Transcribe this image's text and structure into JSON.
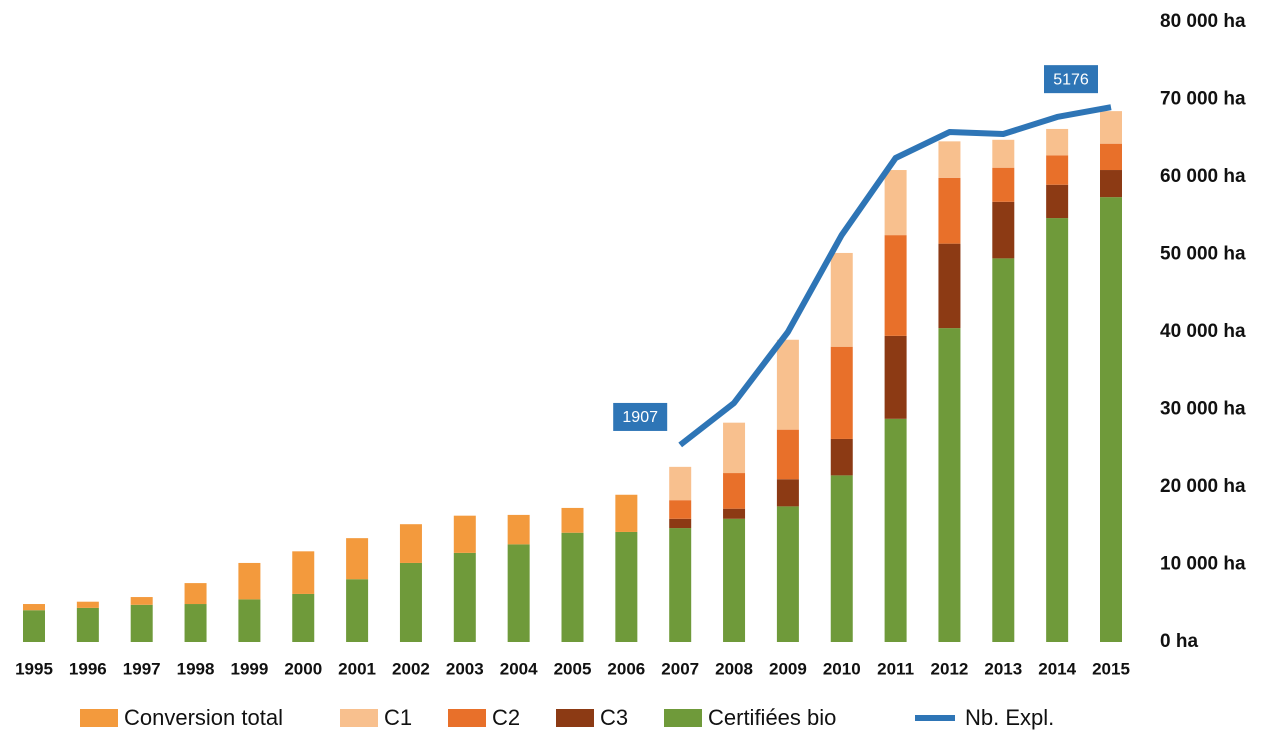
{
  "chart_data": {
    "type": "bar",
    "categories": [
      "1995",
      "1996",
      "1997",
      "1998",
      "1999",
      "2000",
      "2001",
      "2002",
      "2003",
      "2004",
      "2005",
      "2006",
      "2007",
      "2008",
      "2009",
      "2010",
      "2011",
      "2012",
      "2013",
      "2014",
      "2015"
    ],
    "stacked": true,
    "series": [
      {
        "name": "Conversion total",
        "color": "#f39a3d",
        "values": [
          800,
          800,
          1000,
          2700,
          4700,
          5500,
          5300,
          5000,
          4800,
          3800,
          3200,
          4800,
          null,
          null,
          null,
          null,
          null,
          null,
          null,
          null,
          null
        ]
      },
      {
        "name": "C1",
        "color": "#f8c08e",
        "values": [
          null,
          null,
          null,
          null,
          null,
          null,
          null,
          null,
          null,
          null,
          null,
          null,
          4300,
          6500,
          11600,
          12100,
          8400,
          4700,
          3600,
          3400,
          4200
        ]
      },
      {
        "name": "C2",
        "color": "#e8702a",
        "values": [
          null,
          null,
          null,
          null,
          null,
          null,
          null,
          null,
          null,
          null,
          null,
          null,
          2400,
          4600,
          6400,
          11900,
          13000,
          8500,
          4400,
          3800,
          3400
        ]
      },
      {
        "name": "C3",
        "color": "#8c3a14",
        "values": [
          null,
          null,
          null,
          null,
          null,
          null,
          null,
          null,
          null,
          null,
          null,
          null,
          1200,
          1300,
          3500,
          4700,
          10700,
          10900,
          7300,
          4300,
          3500
        ]
      },
      {
        "name": "Certifiées bio",
        "color": "#6f9a3a",
        "values": [
          4100,
          4400,
          4800,
          4900,
          5500,
          6200,
          8100,
          10200,
          11500,
          12600,
          14100,
          14200,
          14700,
          15900,
          17500,
          21500,
          28800,
          40500,
          49500,
          54700,
          57400
        ]
      },
      {
        "name": "Nb. Expl.",
        "type": "line",
        "axis": "y2",
        "color": "#2e75b6",
        "values": [
          null,
          null,
          null,
          null,
          null,
          null,
          null,
          null,
          null,
          null,
          null,
          null,
          1907,
          2313,
          3000,
          3939,
          4684,
          4935,
          4916,
          5081,
          5176
        ],
        "value_labels": [
          null,
          null,
          null,
          null,
          null,
          null,
          null,
          null,
          null,
          null,
          null,
          null,
          "1907",
          null,
          null,
          null,
          null,
          null,
          null,
          null,
          "5176"
        ]
      }
    ],
    "ylim": [
      0,
      80000
    ],
    "yticks": [
      {
        "value": 0,
        "label": "0 ha"
      },
      {
        "value": 10000,
        "label": "10 000 ha"
      },
      {
        "value": 20000,
        "label": "20 000 ha"
      },
      {
        "value": 30000,
        "label": "30 000 ha"
      },
      {
        "value": 40000,
        "label": "40 000 ha"
      },
      {
        "value": 50000,
        "label": "50 000 ha"
      },
      {
        "value": 60000,
        "label": "60 000 ha"
      },
      {
        "value": 70000,
        "label": "70 000 ha"
      },
      {
        "value": 80000,
        "label": "80 000 ha"
      }
    ],
    "y2lim": [
      0,
      6000
    ],
    "grid": false,
    "legend": "bottom"
  }
}
